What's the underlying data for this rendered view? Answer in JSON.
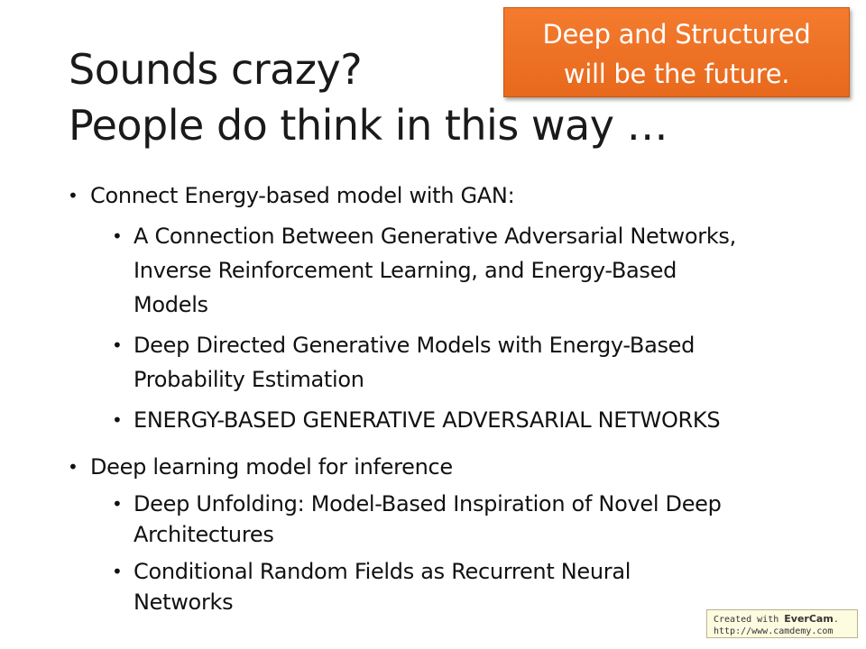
{
  "title": {
    "line1": "Sounds crazy?",
    "line2": "People do think in this way …"
  },
  "callout": {
    "line1": "Deep and Structured",
    "line2": "will be the future.",
    "color": "#f07428"
  },
  "bullets": [
    {
      "text": "Connect Energy-based model with GAN:",
      "children": [
        {
          "lines": [
            "A Connection Between Generative Adversarial Networks,",
            "Inverse Reinforcement Learning, and Energy-Based",
            "Models"
          ]
        },
        {
          "lines": [
            "Deep Directed Generative Models with Energy-Based",
            "Probability Estimation"
          ]
        },
        {
          "lines": [
            "ENERGY-BASED GENERATIVE ADVERSARIAL NETWORKS"
          ]
        }
      ]
    },
    {
      "text": "Deep learning model for inference",
      "children": [
        {
          "lines": [
            "Deep Unfolding: Model-Based Inspiration of Novel Deep",
            "Architectures"
          ]
        },
        {
          "lines": [
            "Conditional Random Fields as Recurrent Neural",
            "Networks"
          ]
        }
      ]
    }
  ],
  "watermark": {
    "prefix": "Created with ",
    "brand": "EverCam",
    "suffix": ".",
    "url": "http://www.camdemy.com"
  }
}
